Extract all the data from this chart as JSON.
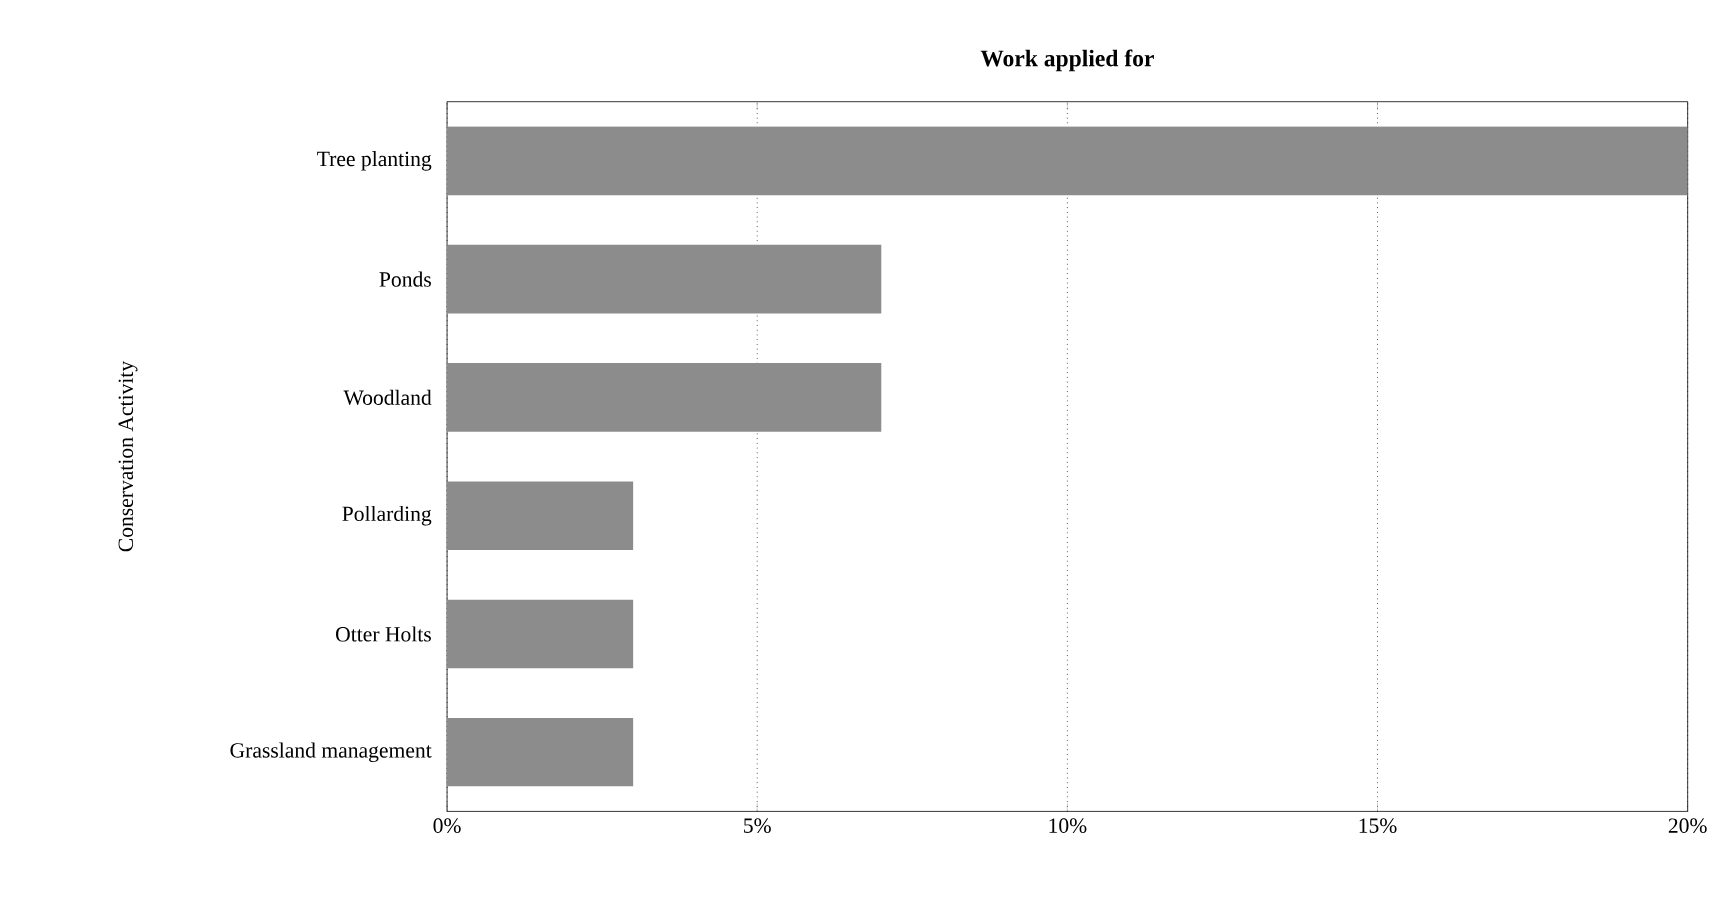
{
  "chart_data": {
    "type": "bar",
    "orientation": "horizontal",
    "title": "Work applied for",
    "ylabel": "Conservation Activity",
    "categories": [
      "Tree planting",
      "Ponds",
      "Woodland",
      "Pollarding",
      "Otter Holts",
      "Grassland management"
    ],
    "values": [
      20,
      7,
      7,
      3,
      3,
      3
    ],
    "color": "#8c8c8c",
    "xlim": [
      0,
      20
    ],
    "xticks": [
      {
        "value": 0,
        "label": "0%"
      },
      {
        "value": 5,
        "label": "5%"
      },
      {
        "value": 10,
        "label": "10%"
      },
      {
        "value": 15,
        "label": "15%"
      },
      {
        "value": 20,
        "label": "20%"
      }
    ],
    "grid": "x"
  }
}
